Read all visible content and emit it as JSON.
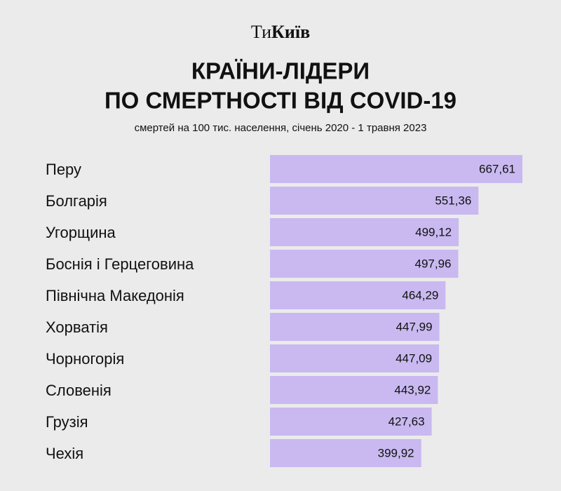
{
  "chart_data": {
    "type": "barh",
    "brand": {
      "light": "Ти",
      "bold": "Київ"
    },
    "title": [
      "КРАЇНИ-ЛІДЕРИ",
      "ПО СМЕРТНОСТІ ВІД COVID-19"
    ],
    "subtitle": "смертей на 100 тис. населення, січень 2020 - 1 травня 2023",
    "categories": [
      "Перу",
      "Болгарія",
      "Угорщина",
      "Боснія і Герцеговина",
      "Північна Македонія",
      "Хорватія",
      "Чорногорія",
      "Словенія",
      "Грузія",
      "Чехія"
    ],
    "values": [
      667.61,
      551.36,
      499.12,
      497.96,
      464.29,
      447.99,
      447.09,
      443.92,
      427.63,
      399.92
    ],
    "value_labels": [
      "667,61",
      "551,36",
      "499,12",
      "497,96",
      "464,29",
      "447,99",
      "447,09",
      "443,92",
      "427,63",
      "399,92"
    ],
    "color": "#c9b9f0"
  }
}
